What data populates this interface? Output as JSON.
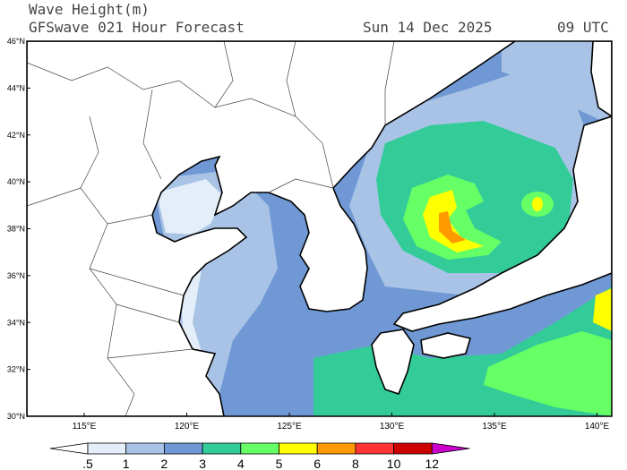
{
  "header": {
    "variable": "Wave Height(m)",
    "forecast": "GFSwave 021 Hour Forecast",
    "date": "Sun 14 Dec 2025",
    "time": "09 UTC"
  },
  "map": {
    "lat_labels": [
      "46°N",
      "44°N",
      "42°N",
      "40°N",
      "38°N",
      "36°N",
      "34°N",
      "32°N",
      "30°N"
    ],
    "lon_labels": [
      "115°E",
      "120°E",
      "125°E",
      "130°E",
      "135°E",
      "140°E"
    ],
    "extent": {
      "lon": [
        112.4,
        142
      ],
      "lat": [
        30,
        46
      ]
    }
  },
  "colorbar": {
    "labels": [
      ".5",
      "1",
      "2",
      "3",
      "4",
      "5",
      "6",
      "8",
      "10",
      "12"
    ],
    "colors": [
      "#e4eef8",
      "#a9c3e6",
      "#6f98d4",
      "#33cc99",
      "#66ff66",
      "#ffff00",
      "#ff9900",
      "#ff3333",
      "#cc0000"
    ],
    "under_color": "#ffffff",
    "over_color": "#cc00cc"
  }
}
